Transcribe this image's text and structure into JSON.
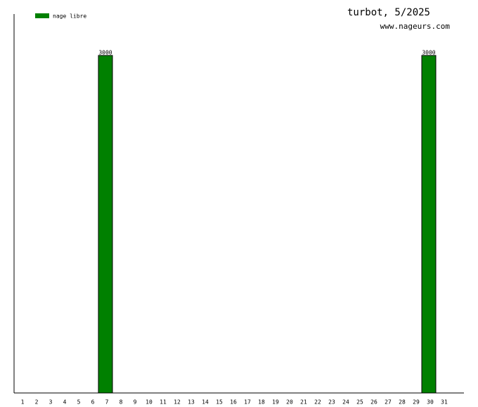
{
  "chart_data": {
    "type": "bar",
    "title": "turbot, 5/2025",
    "subtitle": "www.nageurs.com",
    "categories": [
      "1",
      "2",
      "3",
      "4",
      "5",
      "6",
      "7",
      "8",
      "9",
      "10",
      "11",
      "12",
      "13",
      "14",
      "15",
      "16",
      "17",
      "18",
      "19",
      "20",
      "21",
      "22",
      "23",
      "24",
      "25",
      "26",
      "27",
      "28",
      "29",
      "30",
      "31"
    ],
    "series": [
      {
        "name": "nage libre",
        "color": "#008000",
        "values": [
          null,
          null,
          null,
          null,
          null,
          null,
          3000,
          null,
          null,
          null,
          null,
          null,
          null,
          null,
          null,
          null,
          null,
          null,
          null,
          null,
          null,
          null,
          null,
          null,
          null,
          null,
          null,
          null,
          null,
          3000,
          null
        ]
      }
    ],
    "ylim": [
      0,
      3368
    ],
    "legend": "upper-left"
  }
}
